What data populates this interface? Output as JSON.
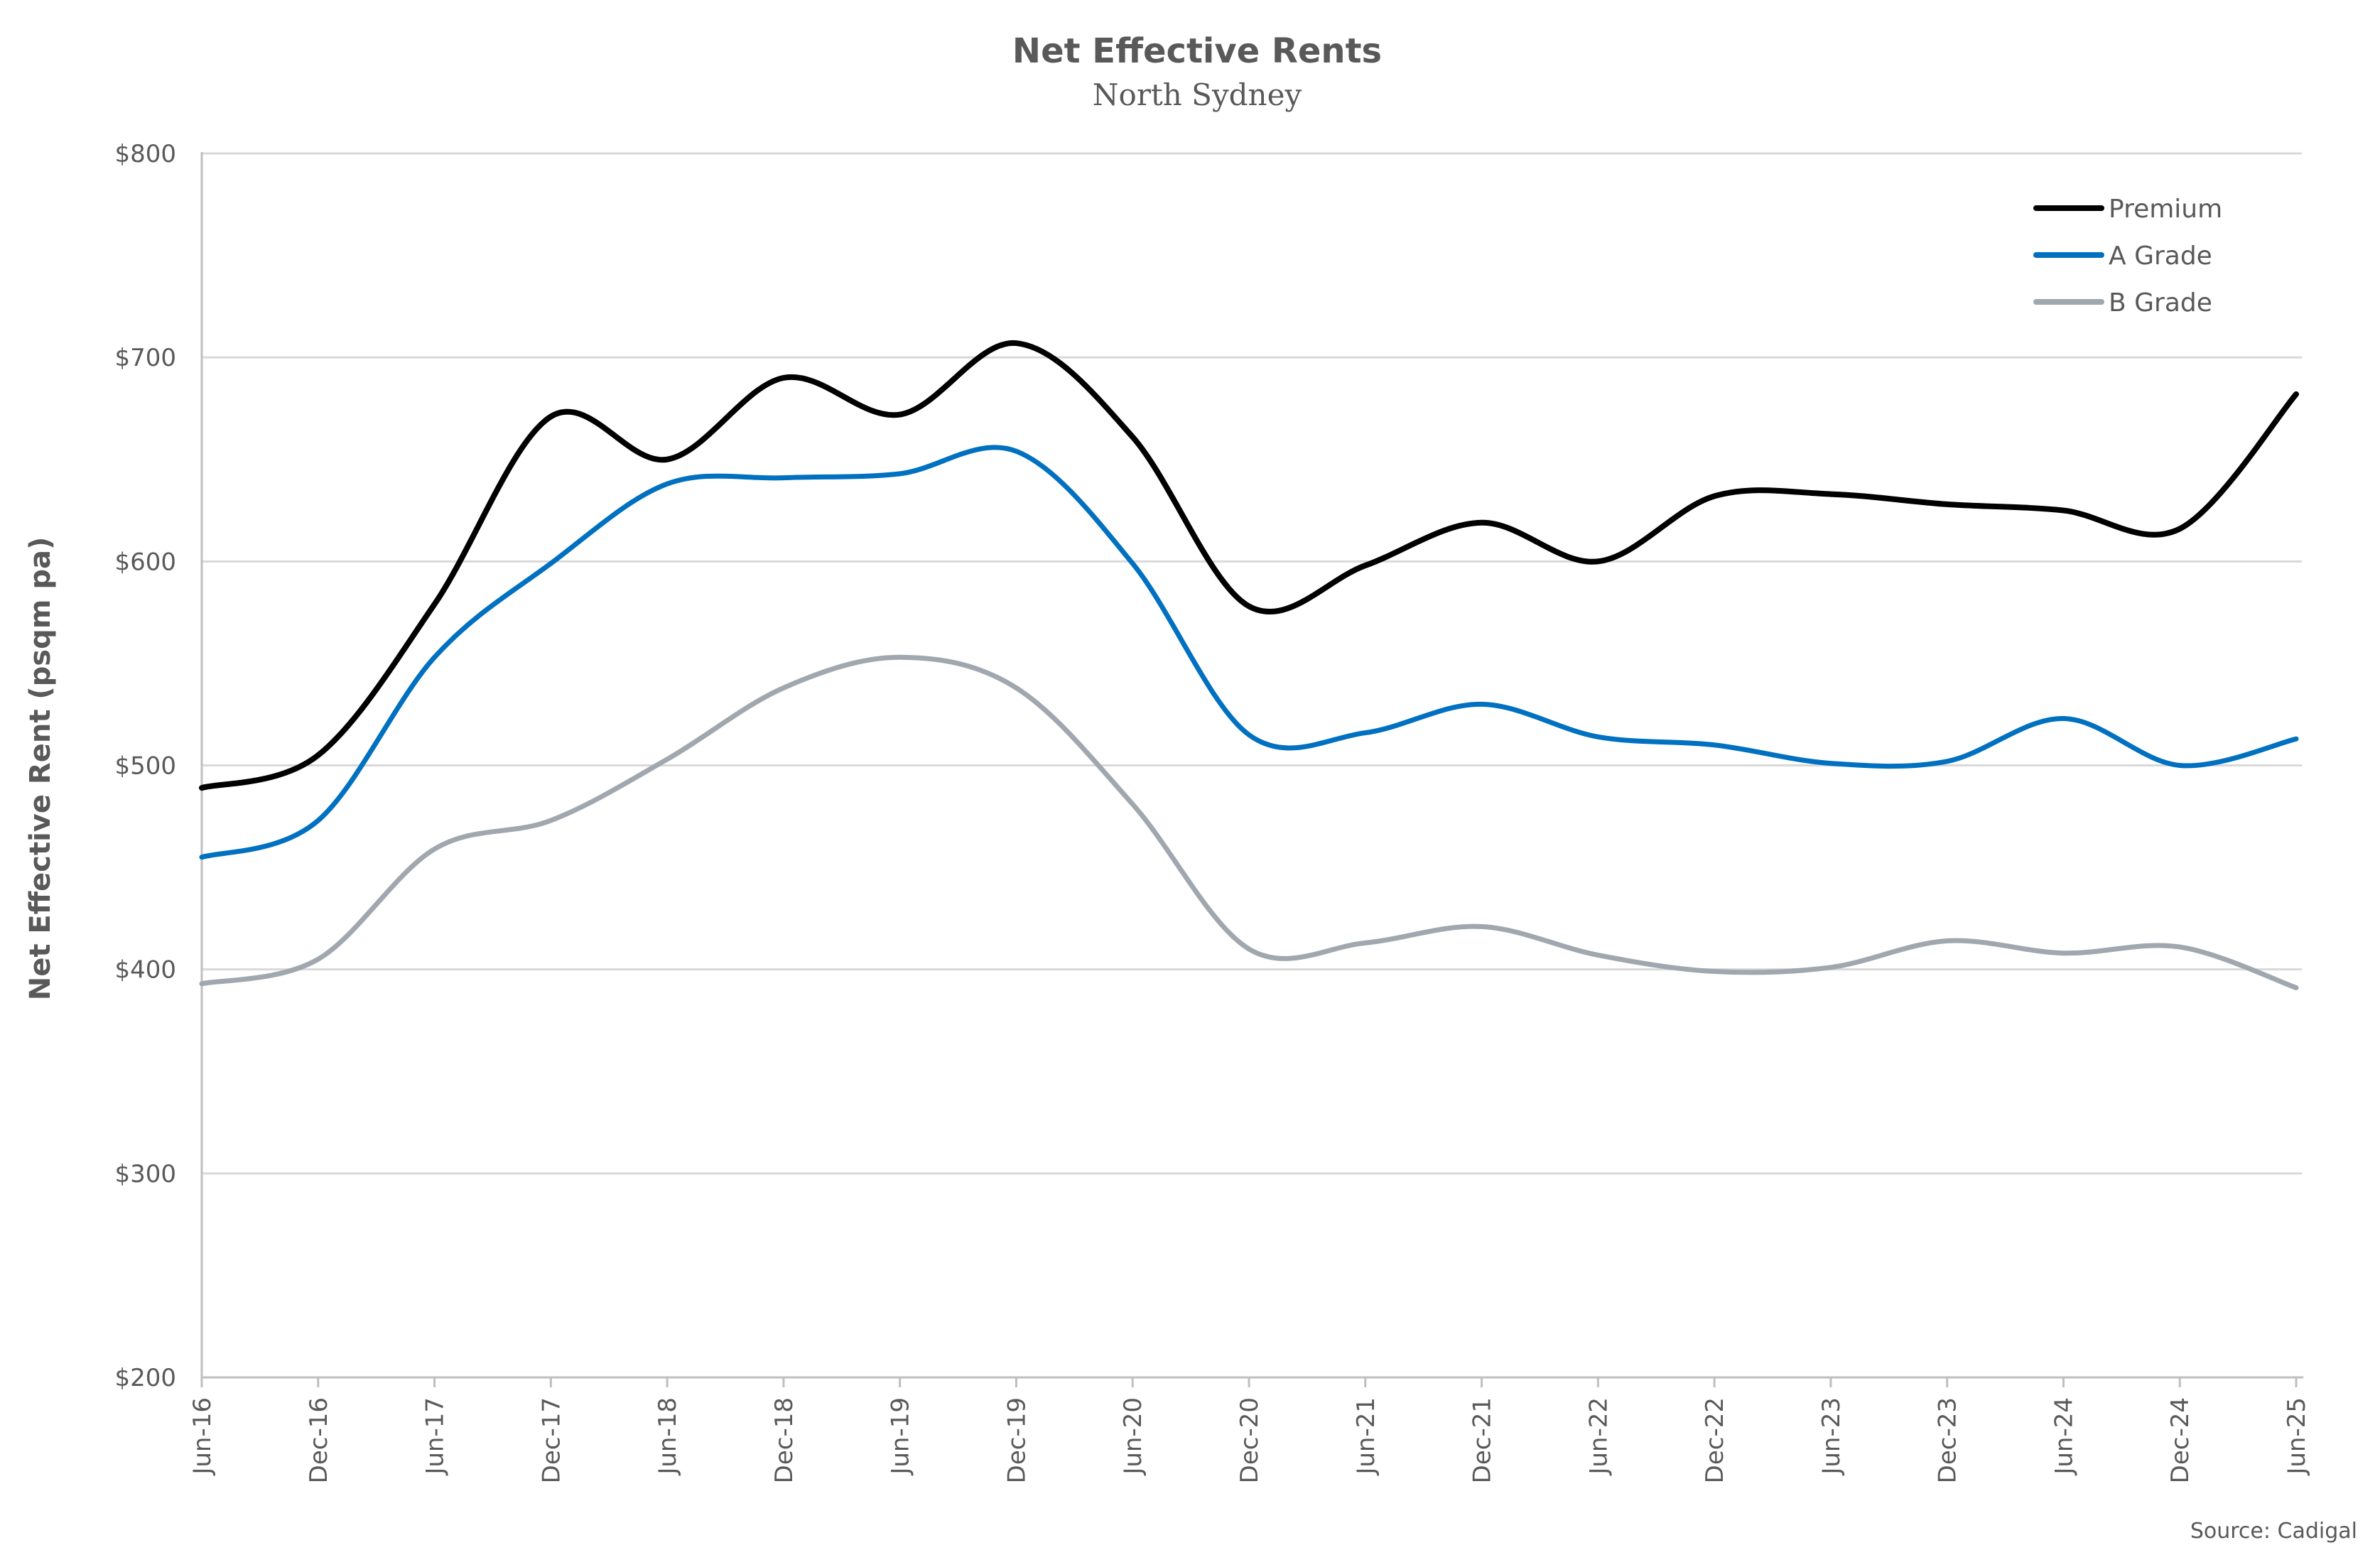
{
  "chart_data": {
    "type": "line",
    "title": "Net Effective Rents",
    "subtitle": "North Sydney",
    "xlabel": "",
    "ylabel": "Net Effective Rent (psqm pa)",
    "ylim": [
      200,
      800
    ],
    "yticks": [
      800,
      700,
      600,
      500,
      400,
      300,
      200
    ],
    "ytick_labels": [
      "$800",
      "$700",
      "$600",
      "$500",
      "$400",
      "$300",
      "$200"
    ],
    "grid": true,
    "legend_position": "top-right",
    "source": "Source: Cadigal",
    "categories": [
      "Jun-16",
      "Dec-16",
      "Jun-17",
      "Dec-17",
      "Jun-18",
      "Dec-18",
      "Jun-19",
      "Dec-19",
      "Jun-20",
      "Dec-20",
      "Jun-21",
      "Dec-21",
      "Jun-22",
      "Dec-22",
      "Jun-23",
      "Dec-23",
      "Jun-24",
      "Dec-24",
      "Jun-25"
    ],
    "series": [
      {
        "name": "Premium",
        "color": "#000000",
        "values": [
          489,
          505,
          579,
          671,
          650,
          690,
          672,
          707,
          661,
          578,
          598,
          619,
          600,
          632,
          633,
          628,
          625,
          616,
          682
        ]
      },
      {
        "name": "A Grade",
        "color": "#0070C0",
        "values": [
          455,
          473,
          553,
          599,
          638,
          641,
          643,
          654,
          599,
          515,
          516,
          530,
          514,
          510,
          501,
          502,
          523,
          500,
          513
        ]
      },
      {
        "name": "B Grade",
        "color": "#A0A7AF",
        "values": [
          393,
          405,
          459,
          473,
          503,
          538,
          553,
          538,
          481,
          410,
          413,
          421,
          407,
          399,
          401,
          414,
          408,
          411,
          391
        ]
      }
    ]
  }
}
